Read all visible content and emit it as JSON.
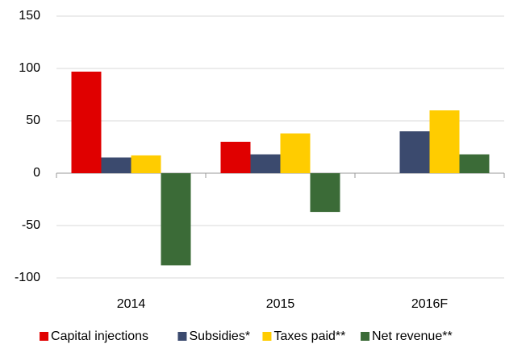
{
  "chart_data": {
    "type": "bar",
    "categories": [
      "2014",
      "2015",
      "2016F"
    ],
    "series": [
      {
        "name": "Capital injections",
        "color": "#e00000",
        "values": [
          97,
          30,
          null
        ]
      },
      {
        "name": "Subsidies*",
        "color": "#3b4a6e",
        "values": [
          15,
          18,
          40
        ]
      },
      {
        "name": "Taxes paid**",
        "color": "#ffcc00",
        "values": [
          17,
          38,
          60
        ]
      },
      {
        "name": "Net revenue**",
        "color": "#3b6b37",
        "values": [
          -88,
          -37,
          18
        ]
      }
    ],
    "ylim": [
      -100,
      150
    ],
    "yticks": [
      -100,
      -50,
      0,
      50,
      100,
      150
    ],
    "grid": true,
    "legend": "bottom"
  }
}
